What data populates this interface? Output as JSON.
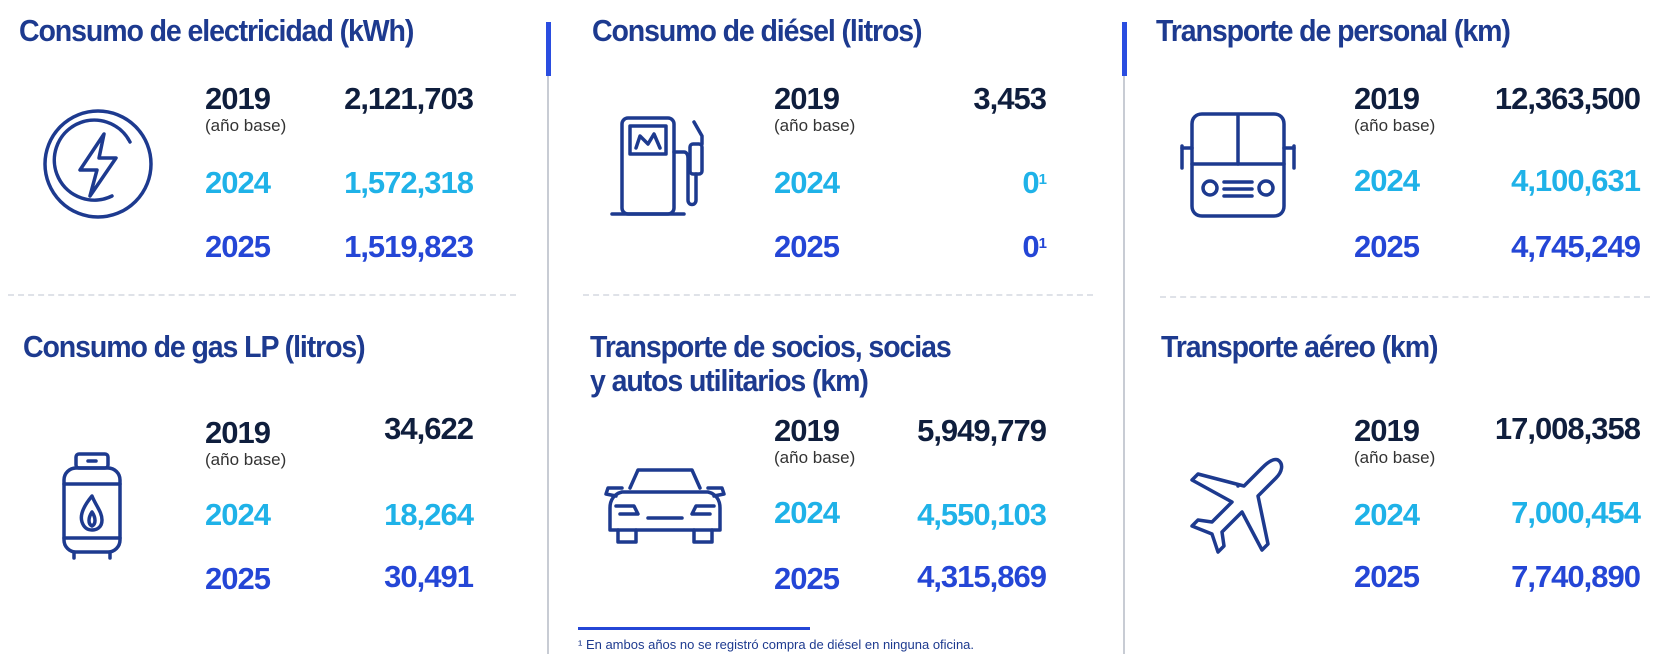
{
  "base_label": "(año base)",
  "blocks": {
    "electricidad": {
      "title": "Consumo de electricidad (kWh)",
      "rows": [
        {
          "year": "2019",
          "value": "2,121,703"
        },
        {
          "year": "2024",
          "value": "1,572,318"
        },
        {
          "year": "2025",
          "value": "1,519,823"
        }
      ]
    },
    "gas": {
      "title": "Consumo de gas LP (litros)",
      "rows": [
        {
          "year": "2019",
          "value": "34,622"
        },
        {
          "year": "2024",
          "value": "18,264"
        },
        {
          "year": "2025",
          "value": "30,491"
        }
      ]
    },
    "diesel": {
      "title": "Consumo de diésel (litros)",
      "rows": [
        {
          "year": "2019",
          "value": "3,453"
        },
        {
          "year": "2024",
          "value": "0",
          "sup": "1"
        },
        {
          "year": "2025",
          "value": "0",
          "sup": "1"
        }
      ]
    },
    "socios": {
      "title_line1": "Transporte de socios, socias",
      "title_line2": "y autos utilitarios (km)",
      "rows": [
        {
          "year": "2019",
          "value": "5,949,779"
        },
        {
          "year": "2024",
          "value": "4,550,103"
        },
        {
          "year": "2025",
          "value": "4,315,869"
        }
      ]
    },
    "personal": {
      "title": "Transporte de personal (km)",
      "rows": [
        {
          "year": "2019",
          "value": "12,363,500"
        },
        {
          "year": "2024",
          "value": "4,100,631"
        },
        {
          "year": "2025",
          "value": "4,745,249"
        }
      ]
    },
    "aereo": {
      "title": "Transporte aéreo (km)",
      "rows": [
        {
          "year": "2019",
          "value": "17,008,358"
        },
        {
          "year": "2024",
          "value": "7,000,454"
        },
        {
          "year": "2025",
          "value": "7,740,890"
        }
      ]
    }
  },
  "footnote": "¹ En ambos años no se registró compra de diésel en ninguna oficina.",
  "icons": [
    "lightning-icon",
    "gas-tank-icon",
    "fuel-pump-icon",
    "car-icon",
    "bus-icon",
    "airplane-icon"
  ],
  "colors": {
    "title": "#1d3a8f",
    "year_2019": "#0f1e3d",
    "year_2024": "#1fb2e8",
    "year_2025": "#2446d6",
    "icon_stroke": "#1d3a8f",
    "accent": "#2a4de0"
  }
}
